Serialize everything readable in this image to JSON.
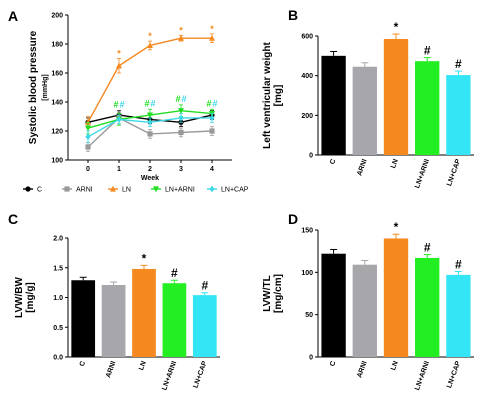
{
  "figure": {
    "legend_items": [
      {
        "label": "C",
        "color": "#000000",
        "marker": "circle"
      },
      {
        "label": "ARNI",
        "color": "#999999",
        "marker": "square"
      },
      {
        "label": "LN",
        "color": "#f5891f",
        "marker": "triangle"
      },
      {
        "label": "LN+ARNI",
        "color": "#22dd22",
        "marker": "triangle-down"
      },
      {
        "label": "LN+CAP",
        "color": "#3dd8e8",
        "marker": "diamond"
      }
    ]
  },
  "chart_data": [
    {
      "panel": "A",
      "type": "line",
      "xlabel": "Week",
      "ylabel": "Systolic blood pressure",
      "ylabel_unit": "[mmHg]",
      "x": [
        0,
        1,
        2,
        3,
        4
      ],
      "ylim": [
        100,
        200
      ],
      "yticks": [
        100,
        120,
        140,
        160,
        180,
        200
      ],
      "series": [
        {
          "name": "C",
          "color": "#000000",
          "values": [
            126,
            131,
            128,
            126,
            131
          ],
          "errors": [
            3,
            3,
            3,
            3,
            3
          ],
          "marks": [
            "",
            "",
            "",
            "",
            ""
          ]
        },
        {
          "name": "ARNI",
          "color": "#999999",
          "values": [
            109,
            129,
            118,
            119,
            120
          ],
          "errors": [
            3,
            4,
            3,
            3,
            3
          ],
          "marks": [
            "",
            "",
            "",
            "",
            ""
          ]
        },
        {
          "name": "LN",
          "color": "#f5891f",
          "values": [
            126,
            165,
            179,
            184,
            184
          ],
          "errors": [
            4,
            5,
            3,
            2,
            3
          ],
          "marks": [
            "",
            "*",
            "*",
            "*",
            "*"
          ]
        },
        {
          "name": "LN+ARNI",
          "color": "#22dd22",
          "values": [
            122,
            128,
            131,
            134,
            132
          ],
          "errors": [
            4,
            4,
            4,
            4,
            3
          ],
          "marks": [
            "",
            "#",
            "#",
            "#",
            "#"
          ]
        },
        {
          "name": "LN+CAP",
          "color": "#3dd8e8",
          "values": [
            116,
            128,
            126,
            129,
            129
          ],
          "errors": [
            4,
            3,
            3,
            3,
            3
          ],
          "marks": [
            "",
            "#",
            "#",
            "#",
            "#"
          ]
        }
      ]
    },
    {
      "panel": "B",
      "type": "bar",
      "ylabel": "Left ventricular weight",
      "ylabel_unit": "[mg]",
      "categories": [
        "C",
        "ARNI",
        "LN",
        "LN+ARNI",
        "LN+CAP"
      ],
      "values": [
        500,
        445,
        585,
        473,
        403
      ],
      "errors": [
        22,
        20,
        25,
        18,
        20
      ],
      "marks": [
        "",
        "",
        "*",
        "#",
        "#"
      ],
      "colors": [
        "#000000",
        "#a6a6ab",
        "#f5891f",
        "#22ee22",
        "#33e5f5"
      ],
      "ylim": [
        0,
        600
      ],
      "yticks": [
        0,
        200,
        400,
        600
      ]
    },
    {
      "panel": "C",
      "type": "bar",
      "ylabel": "LVW/BW",
      "ylabel_unit": "[mg/g]",
      "categories": [
        "C",
        "ARNI",
        "LN",
        "LN+ARNI",
        "LN+CAP"
      ],
      "values": [
        1.29,
        1.21,
        1.48,
        1.24,
        1.04
      ],
      "errors": [
        0.05,
        0.05,
        0.06,
        0.05,
        0.04
      ],
      "marks": [
        "",
        "",
        "*",
        "#",
        "#"
      ],
      "colors": [
        "#000000",
        "#a6a6ab",
        "#f5891f",
        "#22ee22",
        "#33e5f5"
      ],
      "ylim": [
        0,
        2.0
      ],
      "yticks": [
        0.0,
        0.5,
        1.0,
        1.5,
        2.0
      ],
      "tick_decimals": 1
    },
    {
      "panel": "D",
      "type": "bar",
      "ylabel": "LVW/TL",
      "ylabel_unit": "[mg/cm]",
      "categories": [
        "C",
        "ARNI",
        "LN",
        "LN+ARNI",
        "LN+CAP"
      ],
      "values": [
        122,
        109,
        140,
        117,
        97
      ],
      "errors": [
        5,
        5,
        5,
        4,
        4
      ],
      "marks": [
        "",
        "",
        "*",
        "#",
        "#"
      ],
      "colors": [
        "#000000",
        "#a6a6ab",
        "#f5891f",
        "#22ee22",
        "#33e5f5"
      ],
      "ylim": [
        0,
        150
      ],
      "yticks": [
        0,
        50,
        100,
        150
      ]
    }
  ]
}
